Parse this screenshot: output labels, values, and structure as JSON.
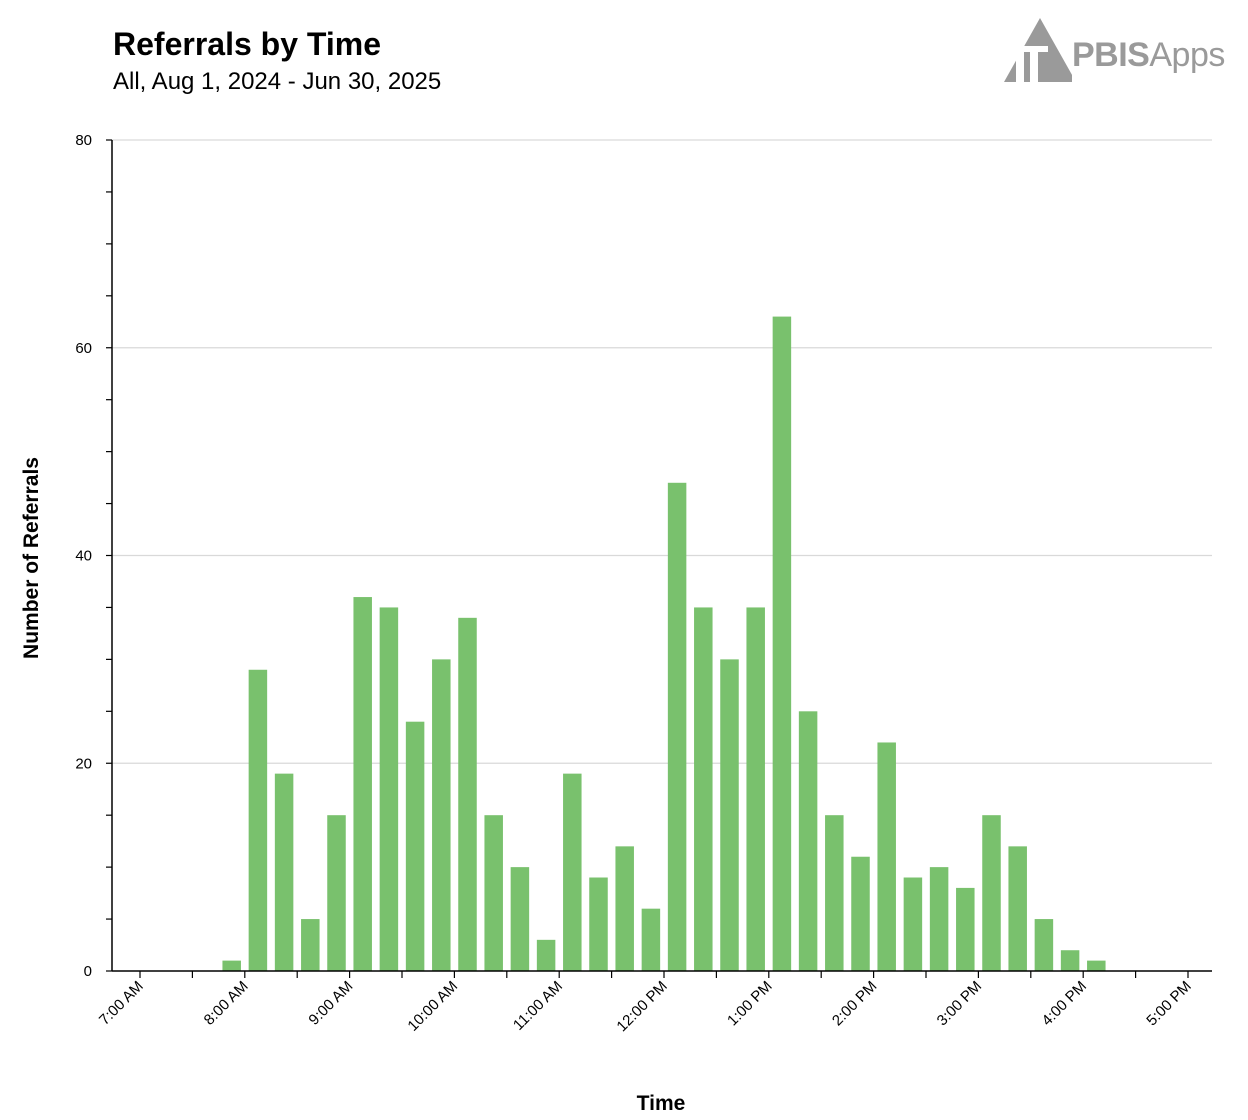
{
  "header": {
    "title": "Referrals by Time",
    "subtitle": "All, Aug 1, 2024 - Jun 30, 2025"
  },
  "logo": {
    "text_bold": "PBIS",
    "text_light": "Apps",
    "color": "#9a9a9a"
  },
  "colors": {
    "bar": "#79c16d",
    "grid": "#d9d9d9",
    "axis": "#000000"
  },
  "chart_data": {
    "type": "bar",
    "xlabel": "Time",
    "ylabel": "Number of Referrals",
    "ylim": [
      0,
      80
    ],
    "y_ticks": [
      0,
      20,
      40,
      60,
      80
    ],
    "grid": "horizontal",
    "x_tick_labels": [
      "7:00 AM",
      "8:00 AM",
      "9:00 AM",
      "10:00 AM",
      "11:00 AM",
      "12:00 PM",
      "1:00 PM",
      "2:00 PM",
      "3:00 PM",
      "4:00 PM",
      "5:00 PM"
    ],
    "bin_minutes": 15,
    "x": [
      "7:00 AM",
      "7:15 AM",
      "7:30 AM",
      "7:45 AM",
      "8:00 AM",
      "8:15 AM",
      "8:30 AM",
      "8:45 AM",
      "9:00 AM",
      "9:15 AM",
      "9:30 AM",
      "9:45 AM",
      "10:00 AM",
      "10:15 AM",
      "10:30 AM",
      "10:45 AM",
      "11:00 AM",
      "11:15 AM",
      "11:30 AM",
      "11:45 AM",
      "12:00 PM",
      "12:15 PM",
      "12:30 PM",
      "12:45 PM",
      "1:00 PM",
      "1:15 PM",
      "1:30 PM",
      "1:45 PM",
      "2:00 PM",
      "2:15 PM",
      "2:30 PM",
      "2:45 PM",
      "3:00 PM",
      "3:15 PM",
      "3:30 PM",
      "3:45 PM",
      "4:00 PM",
      "4:15 PM",
      "4:30 PM",
      "4:45 PM"
    ],
    "values": [
      0,
      0,
      0,
      1,
      29,
      19,
      5,
      15,
      36,
      35,
      24,
      30,
      34,
      15,
      10,
      3,
      19,
      9,
      12,
      6,
      47,
      35,
      30,
      35,
      63,
      25,
      15,
      11,
      22,
      9,
      10,
      8,
      15,
      12,
      5,
      2,
      1,
      0,
      0,
      0
    ]
  }
}
